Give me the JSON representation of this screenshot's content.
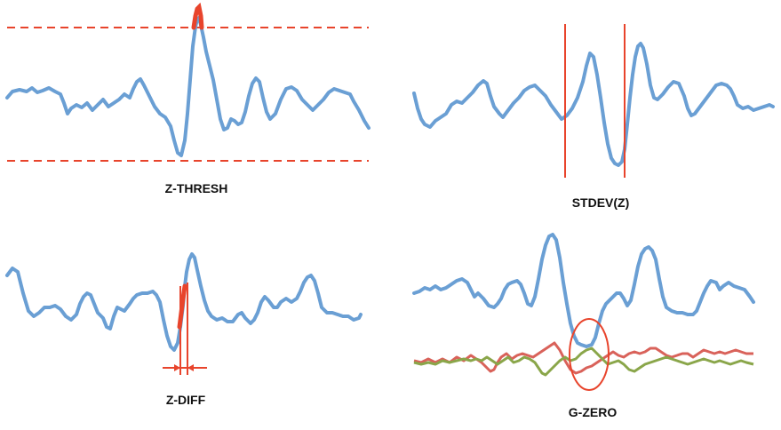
{
  "panels": {
    "z_thresh": {
      "label": "Z-THRESH"
    },
    "stdev_z": {
      "label": "STDEV(Z)"
    },
    "z_diff": {
      "label": "Z-DIFF"
    },
    "g_zero": {
      "label": "G-ZERO"
    }
  },
  "colors": {
    "signal": "#6a9fd4",
    "highlight": "#e8442c",
    "threshold": "#e8442c",
    "trace_red": "#d9625a",
    "trace_green": "#8aa64a"
  }
}
